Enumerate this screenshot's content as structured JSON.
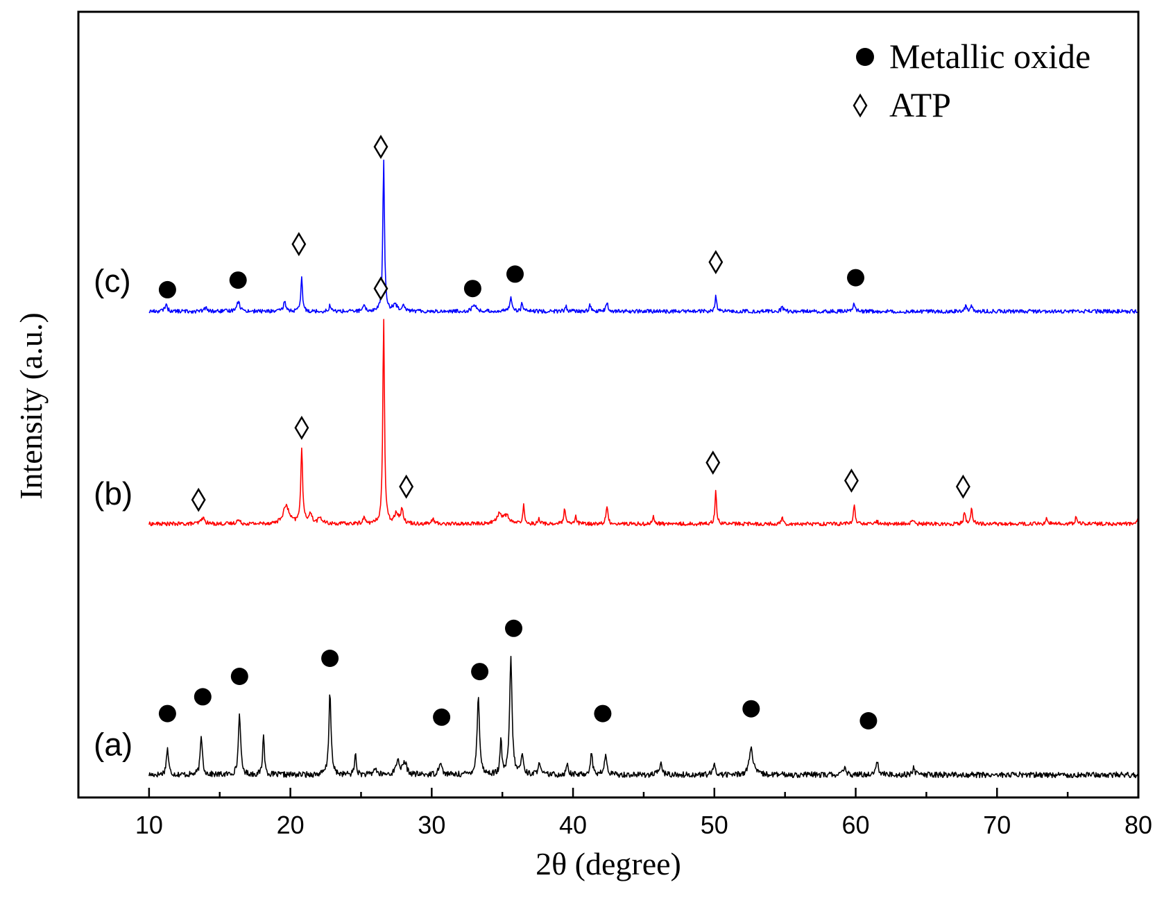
{
  "chart_data": {
    "type": "line",
    "title": "",
    "xlabel": "2θ (degree)",
    "ylabel": "Intensity (a.u.)",
    "xlim": [
      5,
      80
    ],
    "x_ticks": [
      10,
      20,
      30,
      40,
      50,
      60,
      70,
      80
    ],
    "x_minor_step": 5,
    "y_ticks": "none",
    "legend": {
      "placement": "top-right",
      "entries": [
        {
          "marker": "filled-circle",
          "label": "Metallic oxide"
        },
        {
          "marker": "open-diamond",
          "label": "ATP"
        }
      ]
    },
    "series": [
      {
        "name": "(a)",
        "label": "(a)",
        "color": "#000000",
        "baseline": 0.5,
        "noise": 0.24,
        "peaks": [
          {
            "x": 11.3,
            "h": 2.2,
            "w": 0.09
          },
          {
            "x": 13.7,
            "h": 3.2,
            "w": 0.09
          },
          {
            "x": 16.4,
            "h": 5.2,
            "w": 0.09
          },
          {
            "x": 18.1,
            "h": 3.5,
            "w": 0.07
          },
          {
            "x": 22.8,
            "h": 6.9,
            "w": 0.09
          },
          {
            "x": 24.6,
            "h": 1.8,
            "w": 0.07
          },
          {
            "x": 26.0,
            "h": 0.6,
            "w": 0.1
          },
          {
            "x": 27.6,
            "h": 1.2,
            "w": 0.15
          },
          {
            "x": 28.1,
            "h": 1.0,
            "w": 0.15
          },
          {
            "x": 30.6,
            "h": 1.1,
            "w": 0.12
          },
          {
            "x": 33.3,
            "h": 6.6,
            "w": 0.1
          },
          {
            "x": 34.9,
            "h": 2.8,
            "w": 0.07
          },
          {
            "x": 35.6,
            "h": 9.8,
            "w": 0.1
          },
          {
            "x": 36.4,
            "h": 1.6,
            "w": 0.1
          },
          {
            "x": 37.6,
            "h": 1.2,
            "w": 0.08
          },
          {
            "x": 39.6,
            "h": 1.0,
            "w": 0.08
          },
          {
            "x": 41.3,
            "h": 1.7,
            "w": 0.1
          },
          {
            "x": 42.3,
            "h": 1.6,
            "w": 0.1
          },
          {
            "x": 46.2,
            "h": 0.9,
            "w": 0.12
          },
          {
            "x": 50.0,
            "h": 0.8,
            "w": 0.1
          },
          {
            "x": 52.6,
            "h": 2.2,
            "w": 0.16
          },
          {
            "x": 59.2,
            "h": 0.6,
            "w": 0.1
          },
          {
            "x": 61.5,
            "h": 1.1,
            "w": 0.12
          },
          {
            "x": 64.1,
            "h": 0.6,
            "w": 0.1
          }
        ],
        "markers": [
          {
            "type": "circle",
            "x": 11.3,
            "level": 5.6
          },
          {
            "type": "circle",
            "x": 13.8,
            "level": 7.0
          },
          {
            "type": "circle",
            "x": 16.4,
            "level": 8.7
          },
          {
            "type": "circle",
            "x": 22.8,
            "level": 10.2
          },
          {
            "type": "circle",
            "x": 30.7,
            "level": 5.3
          },
          {
            "type": "circle",
            "x": 33.4,
            "level": 9.1
          },
          {
            "type": "circle",
            "x": 35.8,
            "level": 12.7
          },
          {
            "type": "circle",
            "x": 42.1,
            "level": 5.6
          },
          {
            "type": "circle",
            "x": 52.6,
            "level": 6.0
          },
          {
            "type": "circle",
            "x": 60.9,
            "level": 5.0
          }
        ]
      },
      {
        "name": "(b)",
        "label": "(b)",
        "color": "#ff0000",
        "baseline": 21.4,
        "noise": 0.16,
        "peaks": [
          {
            "x": 13.8,
            "h": 0.5,
            "w": 0.15
          },
          {
            "x": 16.3,
            "h": 0.3,
            "w": 0.15
          },
          {
            "x": 19.7,
            "h": 1.5,
            "w": 0.25
          },
          {
            "x": 20.8,
            "h": 6.2,
            "w": 0.08
          },
          {
            "x": 21.4,
            "h": 0.8,
            "w": 0.15
          },
          {
            "x": 22.1,
            "h": 0.5,
            "w": 0.15
          },
          {
            "x": 25.2,
            "h": 0.5,
            "w": 0.1
          },
          {
            "x": 26.6,
            "h": 17.0,
            "w": 0.07
          },
          {
            "x": 27.5,
            "h": 0.9,
            "w": 0.15
          },
          {
            "x": 27.9,
            "h": 1.1,
            "w": 0.12
          },
          {
            "x": 30.1,
            "h": 0.4,
            "w": 0.1
          },
          {
            "x": 34.8,
            "h": 0.8,
            "w": 0.25
          },
          {
            "x": 35.3,
            "h": 0.6,
            "w": 0.2
          },
          {
            "x": 36.5,
            "h": 1.5,
            "w": 0.07
          },
          {
            "x": 37.6,
            "h": 0.4,
            "w": 0.08
          },
          {
            "x": 39.4,
            "h": 1.2,
            "w": 0.07
          },
          {
            "x": 40.2,
            "h": 0.6,
            "w": 0.07
          },
          {
            "x": 42.4,
            "h": 1.4,
            "w": 0.08
          },
          {
            "x": 45.7,
            "h": 0.6,
            "w": 0.08
          },
          {
            "x": 50.1,
            "h": 2.7,
            "w": 0.07
          },
          {
            "x": 54.8,
            "h": 0.5,
            "w": 0.08
          },
          {
            "x": 59.9,
            "h": 1.6,
            "w": 0.07
          },
          {
            "x": 61.5,
            "h": 0.2,
            "w": 0.1
          },
          {
            "x": 64.0,
            "h": 0.3,
            "w": 0.08
          },
          {
            "x": 67.7,
            "h": 0.9,
            "w": 0.08
          },
          {
            "x": 68.2,
            "h": 1.3,
            "w": 0.08
          },
          {
            "x": 73.5,
            "h": 0.4,
            "w": 0.08
          },
          {
            "x": 75.6,
            "h": 0.6,
            "w": 0.08
          },
          {
            "x": 80.0,
            "h": 0.4,
            "w": 0.08
          }
        ],
        "markers": [
          {
            "type": "diamond",
            "x": 13.5,
            "level": 23.4
          },
          {
            "type": "diamond",
            "x": 20.8,
            "level": 29.4
          },
          {
            "type": "diamond",
            "x": 26.4,
            "level": 41.0
          },
          {
            "type": "diamond",
            "x": 28.2,
            "level": 24.5
          },
          {
            "type": "diamond",
            "x": 49.9,
            "level": 26.5
          },
          {
            "type": "diamond",
            "x": 59.7,
            "level": 25.0
          },
          {
            "type": "diamond",
            "x": 67.6,
            "level": 24.5
          }
        ]
      },
      {
        "name": "(c)",
        "label": "(c)",
        "color": "#0000ff",
        "baseline": 39.1,
        "noise": 0.16,
        "peaks": [
          {
            "x": 11.2,
            "h": 0.6,
            "w": 0.1
          },
          {
            "x": 14.0,
            "h": 0.3,
            "w": 0.1
          },
          {
            "x": 16.3,
            "h": 0.8,
            "w": 0.15
          },
          {
            "x": 19.6,
            "h": 0.8,
            "w": 0.1
          },
          {
            "x": 20.8,
            "h": 2.8,
            "w": 0.07
          },
          {
            "x": 22.8,
            "h": 0.5,
            "w": 0.08
          },
          {
            "x": 25.2,
            "h": 0.4,
            "w": 0.1
          },
          {
            "x": 26.6,
            "h": 12.5,
            "w": 0.07
          },
          {
            "x": 27.4,
            "h": 0.6,
            "w": 0.15
          },
          {
            "x": 28.0,
            "h": 0.5,
            "w": 0.15
          },
          {
            "x": 33.0,
            "h": 0.6,
            "w": 0.15
          },
          {
            "x": 35.6,
            "h": 1.2,
            "w": 0.1
          },
          {
            "x": 36.4,
            "h": 0.7,
            "w": 0.07
          },
          {
            "x": 39.5,
            "h": 0.4,
            "w": 0.08
          },
          {
            "x": 41.2,
            "h": 0.5,
            "w": 0.08
          },
          {
            "x": 42.4,
            "h": 0.7,
            "w": 0.08
          },
          {
            "x": 50.1,
            "h": 1.2,
            "w": 0.07
          },
          {
            "x": 54.8,
            "h": 0.4,
            "w": 0.08
          },
          {
            "x": 59.9,
            "h": 0.7,
            "w": 0.07
          },
          {
            "x": 67.8,
            "h": 0.5,
            "w": 0.08
          },
          {
            "x": 68.2,
            "h": 0.5,
            "w": 0.08
          }
        ],
        "markers": [
          {
            "type": "circle",
            "x": 11.3,
            "level": 40.9
          },
          {
            "type": "circle",
            "x": 16.3,
            "level": 41.7
          },
          {
            "type": "circle",
            "x": 32.9,
            "level": 41.0
          },
          {
            "type": "circle",
            "x": 35.9,
            "level": 42.2
          },
          {
            "type": "circle",
            "x": 60.0,
            "level": 41.9
          },
          {
            "type": "diamond",
            "x": 20.6,
            "level": 44.7
          },
          {
            "type": "diamond",
            "x": 26.4,
            "level": 52.8
          },
          {
            "type": "diamond",
            "x": 50.1,
            "level": 43.2
          }
        ]
      }
    ]
  }
}
